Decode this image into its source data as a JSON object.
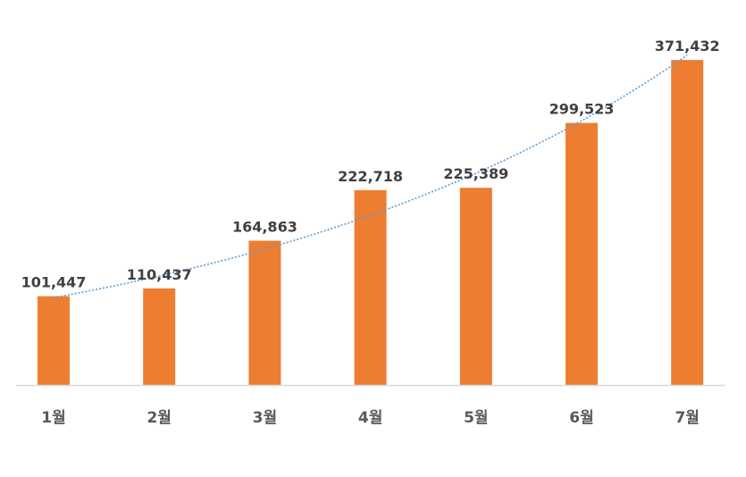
{
  "chart_data": {
    "type": "bar",
    "title": "",
    "xlabel": "",
    "ylabel": "",
    "categories": [
      "1월",
      "2월",
      "3월",
      "4월",
      "5월",
      "6월",
      "7월"
    ],
    "values": [
      101447,
      110437,
      164863,
      222718,
      225389,
      299523,
      371432
    ],
    "data_labels": [
      "101,447",
      "110,437",
      "164,863",
      "222,718",
      "225,389",
      "299,523",
      "371,432"
    ],
    "ylim": [
      0,
      440000
    ],
    "grid": false,
    "legend": "none",
    "trendline": "exponential",
    "colors": {
      "bar": "#ED7D31",
      "trendline": "#5B9BD5",
      "axis": "#D9D9D9"
    }
  }
}
